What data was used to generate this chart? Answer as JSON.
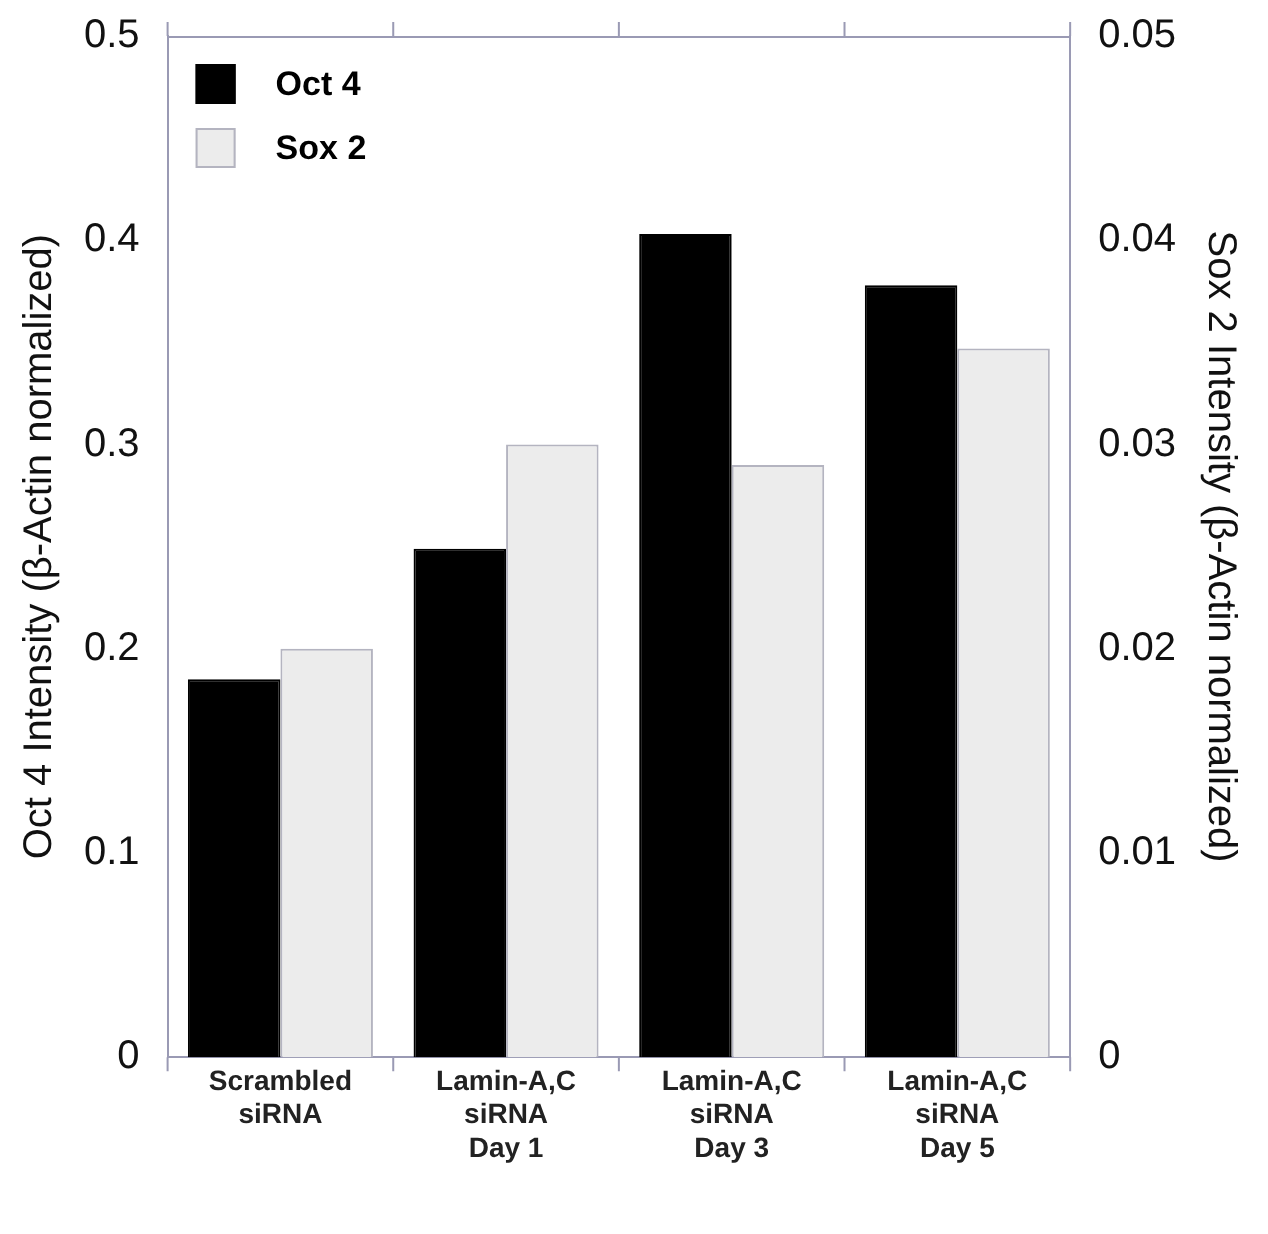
{
  "chart_data": {
    "type": "bar",
    "categories": [
      "Scrambled\nsiRNA",
      "Lamin-A,C\nsiRNA\nDay 1",
      "Lamin-A,C\nsiRNA\nDay 3",
      "Lamin-A,C\nsiRNA\nDay 5"
    ],
    "series": [
      {
        "name": "Oct 4",
        "color": "#000000",
        "values": [
          0.185,
          0.249,
          0.403,
          0.378
        ]
      },
      {
        "name": "Sox 2",
        "color": "#ececec",
        "axis": "y2",
        "values": [
          0.02,
          0.03,
          0.029,
          0.0347
        ]
      }
    ],
    "ylabel": "Oct 4 Intensity (β-Actin normalized)",
    "y2label": "Sox 2 Intensity (β-Actin normalized)",
    "ylim": [
      0,
      0.5
    ],
    "yticks": [
      0,
      0.1,
      0.2,
      0.3,
      0.4,
      0.5
    ],
    "y2lim": [
      0,
      0.05
    ],
    "y2ticks": [
      0,
      0.01,
      0.02,
      0.03,
      0.04,
      0.05
    ],
    "grid": false,
    "legend": "top left"
  }
}
